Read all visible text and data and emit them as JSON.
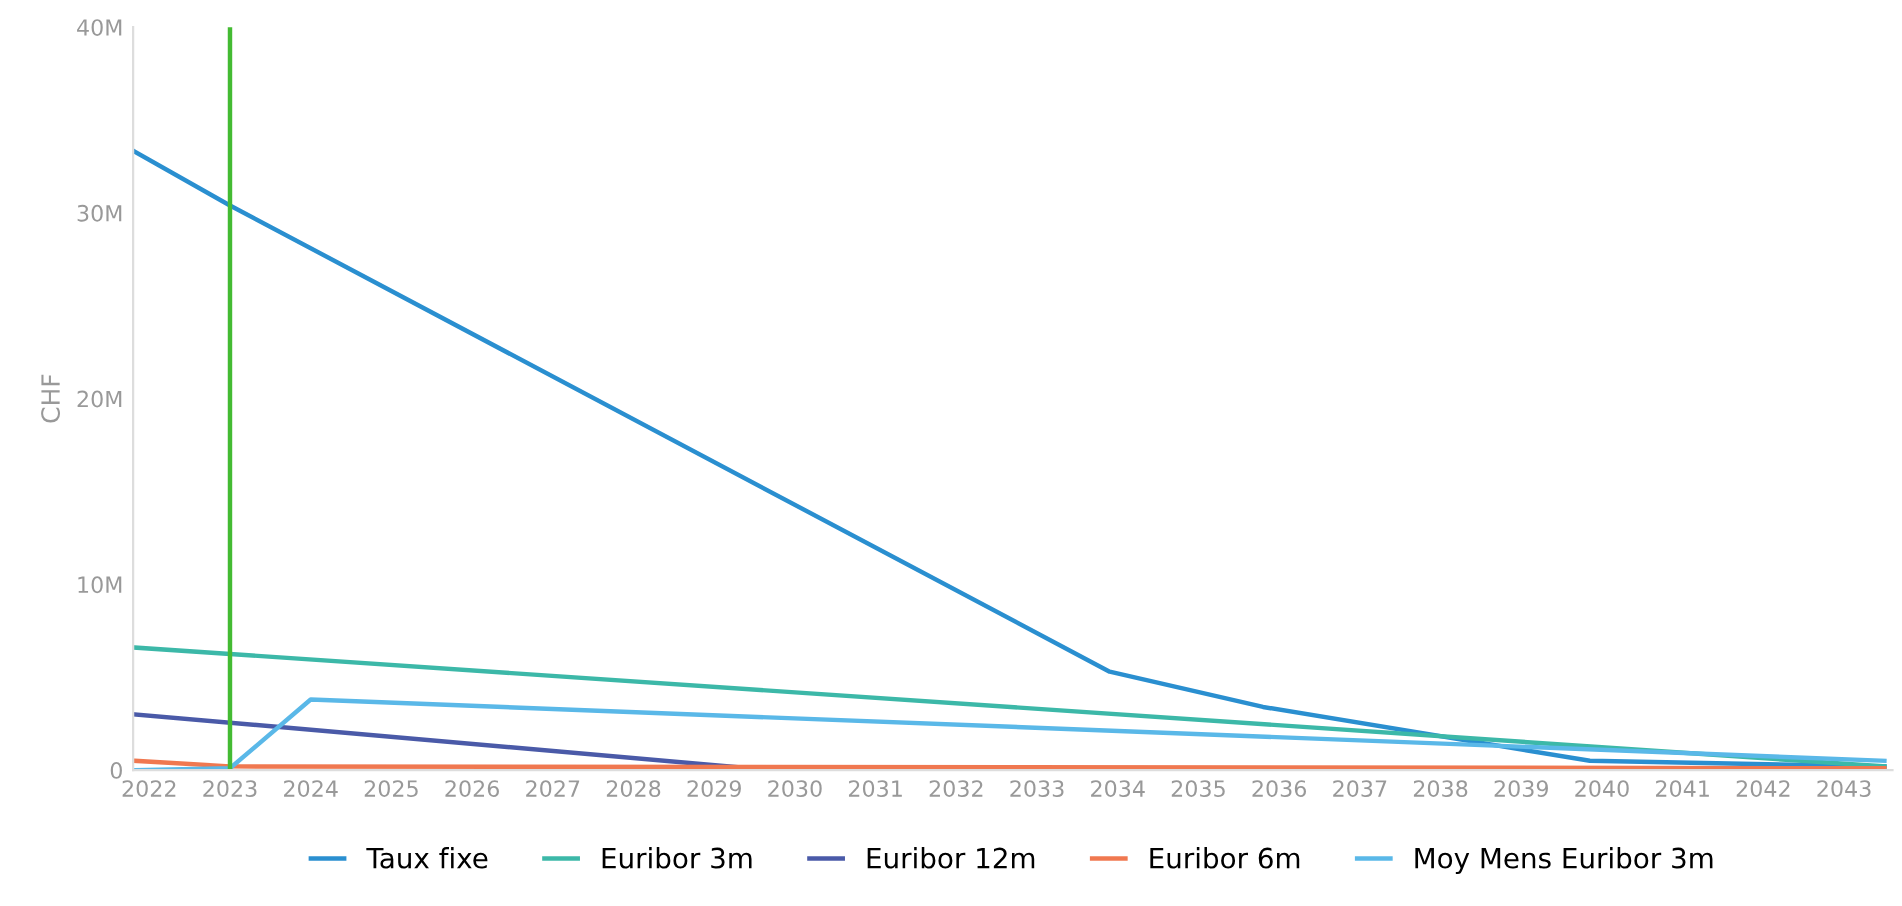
{
  "chart_data": {
    "type": "line",
    "ylabel": "CHF",
    "xlim": [
      2021.8,
      2043.6
    ],
    "xticks": [
      2022,
      2023,
      2024,
      2025,
      2026,
      2027,
      2028,
      2029,
      2030,
      2031,
      2032,
      2033,
      2034,
      2035,
      2036,
      2037,
      2038,
      2039,
      2040,
      2041,
      2042,
      2043
    ],
    "ylim": [
      0,
      40000000
    ],
    "yticks": [
      {
        "value": 0,
        "label": "0"
      },
      {
        "value": 10000000,
        "label": "10M"
      },
      {
        "value": 20000000,
        "label": "20M"
      },
      {
        "value": 30000000,
        "label": "30M"
      },
      {
        "value": 40000000,
        "label": "40M"
      }
    ],
    "series": [
      {
        "name": "Taux fixe",
        "color": "#2a8fd0",
        "x": [
          2021.82,
          2023,
          2033.9,
          2035.8,
          2039.85,
          2043.5
        ],
        "values": [
          33300000,
          30400000,
          5300000,
          3400000,
          500000,
          200000
        ]
      },
      {
        "name": "Euribor 3m",
        "color": "#3cb8a8",
        "x": [
          2021.82,
          2043.5
        ],
        "values": [
          6600000,
          200000
        ]
      },
      {
        "name": "Euribor 12m",
        "color": "#4a5aa8",
        "x": [
          2021.82,
          2029.7
        ],
        "values": [
          3000000,
          0
        ]
      },
      {
        "name": "Euribor 6m",
        "color": "#f07850",
        "x": [
          2021.82,
          2023,
          2043.5
        ],
        "values": [
          500000,
          200000,
          100000
        ]
      },
      {
        "name": "Moy Mens Euribor 3m",
        "color": "#5ab8e8",
        "x": [
          2021.82,
          2023,
          2024,
          2043.5
        ],
        "values": [
          0,
          100000,
          3800000,
          500000
        ]
      }
    ],
    "ref_lines": [
      {
        "axis": "x",
        "value": 2023,
        "color": "#44bb33"
      }
    ],
    "legend": "bottom",
    "grid": false
  }
}
